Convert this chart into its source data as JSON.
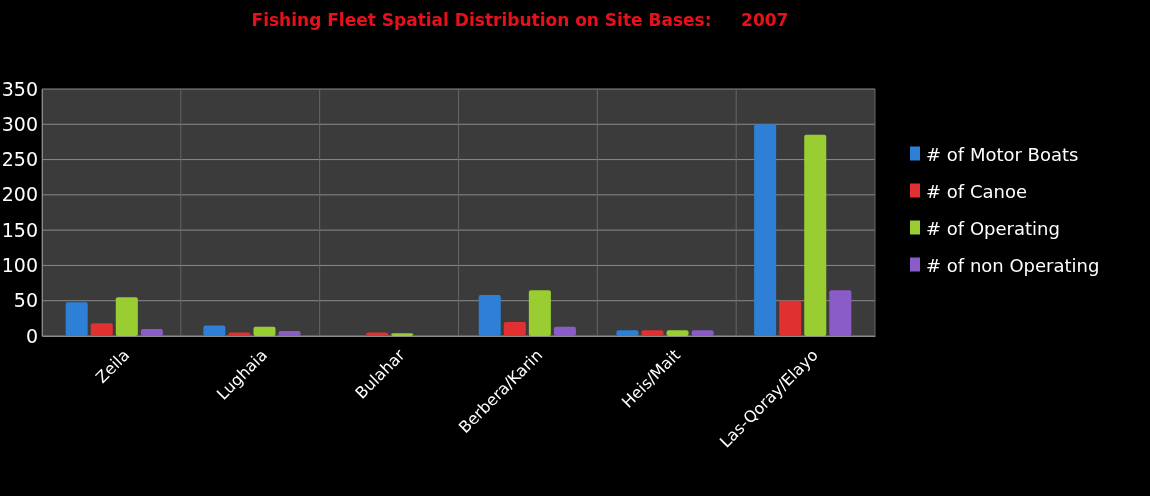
{
  "chart_data": {
    "type": "bar",
    "title": "Fishing Fleet Spatial Distribution on Site Bases:     2007",
    "categories": [
      "Zeila",
      "Lughaia",
      "Bulahar",
      "Berbera/Karin",
      "Heis/Mait",
      "Las-Qoray/Elayo"
    ],
    "series": [
      {
        "name": "# of Motor Boats",
        "color": "#2e7fd6",
        "values": [
          48,
          15,
          0,
          58,
          8,
          300
        ]
      },
      {
        "name": "# of Canoe",
        "color": "#e03030",
        "values": [
          18,
          5,
          5,
          20,
          8,
          50
        ]
      },
      {
        "name": "# of Operating",
        "color": "#9acd32",
        "values": [
          55,
          13,
          4,
          65,
          8,
          285
        ]
      },
      {
        "name": "# of non Operating",
        "color": "#8a5cc8",
        "values": [
          10,
          7,
          0,
          13,
          8,
          65
        ]
      }
    ],
    "ylim": [
      0,
      350
    ],
    "yticks": [
      0,
      50,
      100,
      150,
      200,
      250,
      300,
      350
    ],
    "grid": true,
    "legend": "right"
  }
}
